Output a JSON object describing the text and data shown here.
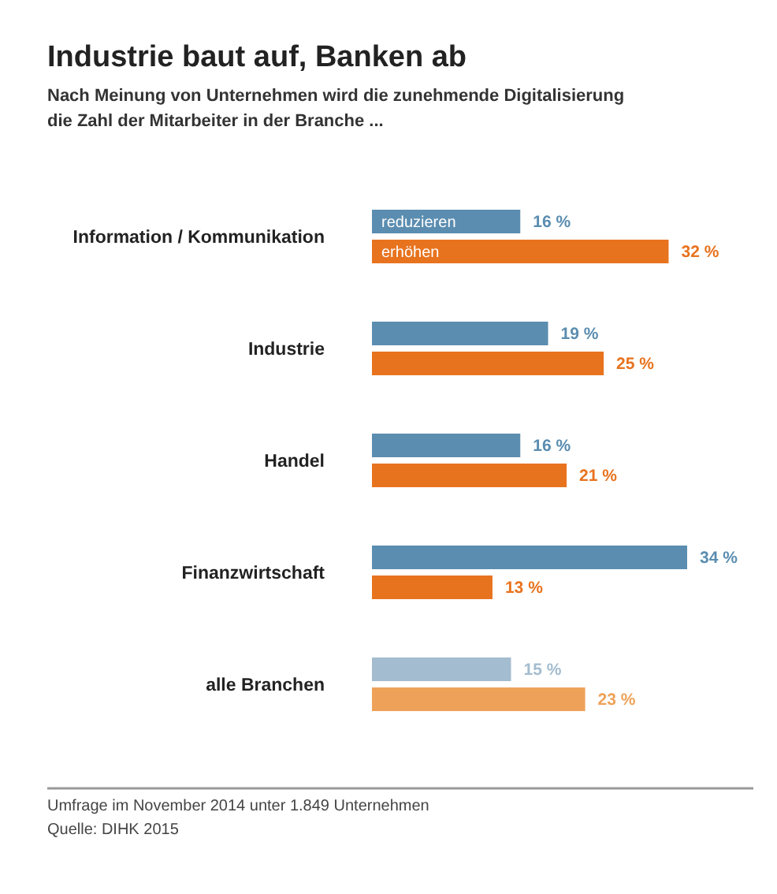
{
  "chart_data": {
    "type": "bar",
    "orientation": "horizontal",
    "title": "Industrie baut auf, Banken ab",
    "subtitle": "Nach Meinung von Unternehmen wird die zunehmende Digitalisierung die Zahl der Mitarbeiter in der Branche ...",
    "categories": [
      "Information / Kommunikation",
      "Industrie",
      "Handel",
      "Finanzwirtschaft",
      "alle Branchen"
    ],
    "series": [
      {
        "name": "reduzieren",
        "colors": [
          "#5b8db0",
          "#5b8db0",
          "#5b8db0",
          "#5b8db0",
          "#a3bccf"
        ],
        "values": [
          16,
          19,
          16,
          34,
          15
        ],
        "value_labels": [
          "16 %",
          "19 %",
          "16 %",
          "34 %",
          "15 %"
        ]
      },
      {
        "name": "erhöhen",
        "colors": [
          "#e8731f",
          "#e8731f",
          "#e8731f",
          "#e8731f",
          "#eea259"
        ],
        "values": [
          32,
          25,
          21,
          13,
          23
        ],
        "value_labels": [
          "32 %",
          "25 %",
          "21 %",
          "13 %",
          "23 %"
        ]
      }
    ],
    "annotations": [
      "Umfrage im November 2014 unter 1.849 Unternehmen",
      "Quelle: DIHK 2015"
    ]
  }
}
